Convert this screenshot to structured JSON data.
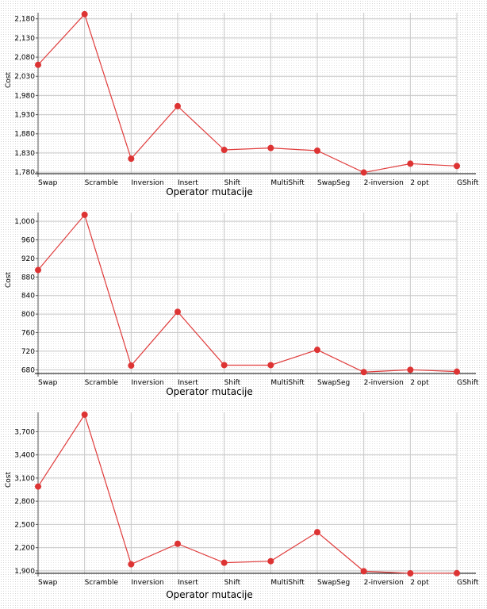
{
  "chart_data": [
    {
      "type": "line",
      "categories": [
        "Swap",
        "Scramble",
        "Inversion",
        "Insert",
        "Shift",
        "MultiShift",
        "SwapSeg",
        "2-inversion",
        "2 opt",
        "GShift"
      ],
      "series": [
        {
          "values": [
            2060,
            2192,
            1815,
            1952,
            1838,
            1843,
            1836,
            1779,
            1802,
            1796
          ]
        }
      ],
      "yticks": [
        1780,
        1830,
        1880,
        1930,
        1980,
        2030,
        2080,
        2130,
        2180
      ],
      "ytick_labels": [
        "1,780",
        "1,830",
        "1,880",
        "1,930",
        "1,980",
        "2,030",
        "2,080",
        "2,130",
        "2,180"
      ],
      "ylim": [
        1776,
        2196
      ],
      "ylabel": "Cost",
      "xlabel": "Operator mutacije",
      "grid": true,
      "line_color": "#e03c3c",
      "marker_color": "#dd3333"
    },
    {
      "type": "line",
      "categories": [
        "Swap",
        "Scramble",
        "Inversion",
        "Insert",
        "Shift",
        "MultiShift",
        "SwapSeg",
        "2-inversion",
        "2 opt",
        "GShift"
      ],
      "series": [
        {
          "values": [
            895,
            1014,
            689,
            805,
            690,
            690,
            723,
            675,
            680,
            676
          ]
        }
      ],
      "yticks": [
        680,
        720,
        760,
        800,
        840,
        880,
        920,
        960,
        1000
      ],
      "ytick_labels": [
        "680",
        "720",
        "760",
        "800",
        "840",
        "880",
        "920",
        "960",
        "1,000"
      ],
      "ylim": [
        672,
        1019
      ],
      "ylabel": "Cost",
      "xlabel": "Operator mutacije",
      "grid": true,
      "line_color": "#e03c3c",
      "marker_color": "#dd3333"
    },
    {
      "type": "line",
      "categories": [
        "Swap",
        "Scramble",
        "Inversion",
        "Insert",
        "Shift",
        "MultiShift",
        "SwapSeg",
        "2-inversion",
        "2 opt",
        "GShift"
      ],
      "series": [
        {
          "values": [
            2990,
            3920,
            1985,
            2250,
            2005,
            2025,
            2400,
            1895,
            1868,
            1870
          ]
        }
      ],
      "yticks": [
        1900,
        2200,
        2500,
        2800,
        3100,
        3400,
        3700
      ],
      "ytick_labels": [
        "1,900",
        "2,200",
        "2,500",
        "2,800",
        "3,100",
        "3,400",
        "3,700"
      ],
      "ylim": [
        1868,
        3950
      ],
      "ylabel": "Cost",
      "xlabel": "Operator mutacije",
      "grid": true,
      "line_color": "#e03c3c",
      "marker_color": "#dd3333"
    }
  ]
}
